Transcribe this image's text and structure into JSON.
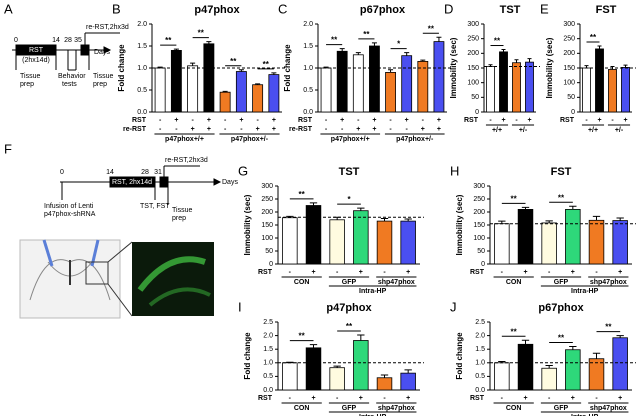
{
  "diagram_a": {
    "panel": "A",
    "ticks": [
      "0",
      "14",
      "28",
      "35"
    ],
    "box_label": "RST",
    "box_sub": "(2hx14d)",
    "axis_label": "Days",
    "re_rst": "re-RST,2hx3d",
    "tissue_prep_1": [
      "Tissue",
      "prep"
    ],
    "behavior": [
      "Behavior",
      "tests"
    ],
    "tissue_prep_2": [
      "Tissue",
      "prep"
    ]
  },
  "diagram_f": {
    "panel": "F",
    "ticks": [
      "0",
      "14",
      "28",
      "31"
    ],
    "box_label": "RST, 2hx14d",
    "axis_label": "Days",
    "re_rst": "re-RST,2hx3d",
    "infusion": [
      "Infusion of Lenti",
      "p47phox-shRNA"
    ],
    "tests": "TST, FST",
    "tissue_prep": [
      "Tissue",
      "prep"
    ]
  },
  "chart_data": [
    {
      "type": "bar",
      "panel": "B",
      "title": "p47phox",
      "y_label": "Fold change",
      "ylim": [
        0,
        2
      ],
      "yticks": [
        {
          "value": 0,
          "label": "0.0"
        },
        {
          "value": 0.5,
          "label": "0.5"
        },
        {
          "value": 1,
          "label": "1.0"
        },
        {
          "value": 1.5,
          "label": "1.5"
        },
        {
          "value": 2,
          "label": "2.0"
        }
      ],
      "values": [
        1.0,
        1.4,
        1.05,
        1.55,
        0.45,
        0.92,
        0.62,
        0.85
      ],
      "errors": [
        0.02,
        0.03,
        0.06,
        0.05,
        0.02,
        0.04,
        0.02,
        0.04
      ],
      "colors": [
        "#ffffff",
        "#000000",
        "#ffffff",
        "#000000",
        "#f07a22",
        "#4a4ff0",
        "#f07a22",
        "#4a4ff0"
      ],
      "reference_line": 1,
      "rows": [
        {
          "label": "RST",
          "values": [
            "-",
            "+",
            "-",
            "+",
            "-",
            "+",
            "-",
            "+"
          ]
        },
        {
          "label": "re-RST",
          "values": [
            "-",
            "-",
            "+",
            "+",
            "-",
            "-",
            "+",
            "+"
          ]
        }
      ],
      "groups": [
        {
          "label": "p47phox+/+",
          "bars": [
            0,
            3
          ]
        },
        {
          "label": "p47phox+/-",
          "bars": [
            4,
            7
          ]
        }
      ],
      "significance": [
        {
          "label": "**",
          "bars": [
            0,
            1
          ]
        },
        {
          "label": "**",
          "bars": [
            2,
            3
          ]
        },
        {
          "label": "**",
          "bars": [
            4,
            5
          ]
        },
        {
          "label": "**",
          "bars": [
            6,
            7
          ]
        }
      ]
    },
    {
      "type": "bar",
      "panel": "C",
      "title": "p67phox",
      "y_label": "Fold change",
      "ylim": [
        0,
        2
      ],
      "yticks": [
        {
          "value": 0,
          "label": "0.0"
        },
        {
          "value": 0.5,
          "label": "0.5"
        },
        {
          "value": 1,
          "label": "1.0"
        },
        {
          "value": 1.5,
          "label": "1.5"
        },
        {
          "value": 2,
          "label": "2.0"
        }
      ],
      "values": [
        1.0,
        1.38,
        1.3,
        1.5,
        0.9,
        1.28,
        1.15,
        1.6
      ],
      "errors": [
        0.02,
        0.06,
        0.05,
        0.07,
        0.06,
        0.07,
        0.03,
        0.1
      ],
      "colors": [
        "#ffffff",
        "#000000",
        "#ffffff",
        "#000000",
        "#f07a22",
        "#4a4ff0",
        "#f07a22",
        "#4a4ff0"
      ],
      "reference_line": 1,
      "rows": [
        {
          "label": "RST",
          "values": [
            "-",
            "+",
            "-",
            "+",
            "-",
            "+",
            "-",
            "+"
          ]
        },
        {
          "label": "re-RST",
          "values": [
            "-",
            "-",
            "+",
            "+",
            "-",
            "-",
            "+",
            "+"
          ]
        }
      ],
      "groups": [
        {
          "label": "p47phox+/+",
          "bars": [
            0,
            3
          ]
        },
        {
          "label": "p47phox+/-",
          "bars": [
            4,
            7
          ]
        }
      ],
      "significance": [
        {
          "label": "**",
          "bars": [
            0,
            1
          ]
        },
        {
          "label": "**",
          "bars": [
            2,
            3
          ]
        },
        {
          "label": "*",
          "bars": [
            4,
            5
          ]
        },
        {
          "label": "**",
          "bars": [
            6,
            7
          ]
        }
      ]
    },
    {
      "type": "bar",
      "panel": "D",
      "title": "TST",
      "y_label": "Immobility (sec)",
      "ylim": [
        0,
        300
      ],
      "yticks": [
        0,
        50,
        100,
        150,
        200,
        250,
        300
      ],
      "values": [
        155,
        205,
        168,
        170
      ],
      "errors": [
        6,
        8,
        10,
        12
      ],
      "colors": [
        "#ffffff",
        "#000000",
        "#f07a22",
        "#4a4ff0"
      ],
      "reference_line": 155,
      "rows": [
        {
          "label": "RST",
          "values": [
            "-",
            "+",
            "-",
            "+"
          ]
        }
      ],
      "groups": [
        {
          "label": "+/+",
          "bars": [
            0,
            1
          ]
        },
        {
          "label": "+/-",
          "bars": [
            2,
            3
          ]
        }
      ],
      "significance": [
        {
          "label": "**",
          "bars": [
            0,
            1
          ]
        }
      ]
    },
    {
      "type": "bar",
      "panel": "E",
      "title": "FST",
      "y_label": "Immobility (sec)",
      "ylim": [
        0,
        300
      ],
      "yticks": [
        0,
        50,
        100,
        150,
        200,
        250,
        300
      ],
      "values": [
        150,
        215,
        145,
        152
      ],
      "errors": [
        8,
        10,
        10,
        8
      ],
      "colors": [
        "#ffffff",
        "#000000",
        "#f07a22",
        "#4a4ff0"
      ],
      "reference_line": 150,
      "rows": [
        {
          "label": "RST",
          "values": [
            "-",
            "+",
            "-",
            "+"
          ]
        }
      ],
      "groups": [
        {
          "label": "+/+",
          "bars": [
            0,
            1
          ]
        },
        {
          "label": "+/-",
          "bars": [
            2,
            3
          ]
        }
      ],
      "significance": [
        {
          "label": "**",
          "bars": [
            0,
            1
          ]
        }
      ]
    },
    {
      "type": "bar",
      "panel": "G",
      "title": "TST",
      "y_label": "Immobility (sec)",
      "ylim": [
        0,
        300
      ],
      "yticks": [
        0,
        50,
        100,
        150,
        200,
        250,
        300
      ],
      "values": [
        178,
        225,
        170,
        205,
        165,
        165
      ],
      "errors": [
        5,
        10,
        10,
        10,
        10,
        8
      ],
      "colors": [
        "#ffffff",
        "#000000",
        "#fffbe0",
        "#2ed87a",
        "#f07a22",
        "#4a4ff0"
      ],
      "reference_line": 180,
      "rows": [
        {
          "label": "RST",
          "values": [
            "-",
            "+",
            "-",
            "+",
            "-",
            "+"
          ]
        }
      ],
      "groups": [
        {
          "label": "CON",
          "bars": [
            0,
            1
          ]
        },
        {
          "label": "GFP",
          "bars": [
            2,
            3
          ]
        },
        {
          "label": "shp47phox",
          "bars": [
            4,
            5
          ]
        }
      ],
      "super_groups": [
        {
          "label": "Intra-HP",
          "bars": [
            2,
            5
          ]
        }
      ],
      "significance": [
        {
          "label": "**",
          "bars": [
            0,
            1
          ]
        },
        {
          "label": "*",
          "bars": [
            2,
            3
          ]
        }
      ]
    },
    {
      "type": "bar",
      "panel": "H",
      "title": "FST",
      "y_label": "Immobility (sec)",
      "ylim": [
        0,
        300
      ],
      "yticks": [
        0,
        50,
        100,
        150,
        200,
        250,
        300
      ],
      "values": [
        155,
        210,
        158,
        210,
        168,
        167
      ],
      "errors": [
        10,
        8,
        8,
        12,
        15,
        10
      ],
      "colors": [
        "#ffffff",
        "#000000",
        "#fffbe0",
        "#2ed87a",
        "#f07a22",
        "#4a4ff0"
      ],
      "reference_line": 155,
      "rows": [
        {
          "label": "RST",
          "values": [
            "-",
            "+",
            "-",
            "+",
            "-",
            "+"
          ]
        }
      ],
      "groups": [
        {
          "label": "CON",
          "bars": [
            0,
            1
          ]
        },
        {
          "label": "GFP",
          "bars": [
            2,
            3
          ]
        },
        {
          "label": "shp47phox",
          "bars": [
            4,
            5
          ]
        }
      ],
      "super_groups": [
        {
          "label": "Intra-HP",
          "bars": [
            2,
            5
          ]
        }
      ],
      "significance": [
        {
          "label": "**",
          "bars": [
            0,
            1
          ]
        },
        {
          "label": "**",
          "bars": [
            2,
            3
          ]
        }
      ]
    },
    {
      "type": "bar",
      "panel": "I",
      "title": "p47phox",
      "y_label": "Fold change",
      "ylim": [
        0,
        2.5
      ],
      "yticks": [
        {
          "value": 0,
          "label": "0.0"
        },
        {
          "value": 0.5,
          "label": "0.5"
        },
        {
          "value": 1,
          "label": "1.0"
        },
        {
          "value": 1.5,
          "label": "1.5"
        },
        {
          "value": 2,
          "label": "2.0"
        },
        {
          "value": 2.5,
          "label": "2.5"
        }
      ],
      "values": [
        1.0,
        1.55,
        0.82,
        1.82,
        0.45,
        0.62
      ],
      "errors": [
        0.02,
        0.12,
        0.06,
        0.2,
        0.1,
        0.12
      ],
      "colors": [
        "#ffffff",
        "#000000",
        "#fffbe0",
        "#2ed87a",
        "#f07a22",
        "#4a4ff0"
      ],
      "reference_line": 1,
      "rows": [
        {
          "label": "RST",
          "values": [
            "-",
            "+",
            "-",
            "+",
            "-",
            "+"
          ]
        }
      ],
      "groups": [
        {
          "label": "CON",
          "bars": [
            0,
            1
          ]
        },
        {
          "label": "GFP",
          "bars": [
            2,
            3
          ]
        },
        {
          "label": "shp47phox",
          "bars": [
            4,
            5
          ]
        }
      ],
      "super_groups": [
        {
          "label": "Intra-HP",
          "bars": [
            2,
            5
          ]
        }
      ],
      "significance": [
        {
          "label": "**",
          "bars": [
            0,
            1
          ]
        },
        {
          "label": "**",
          "bars": [
            2,
            3
          ]
        }
      ]
    },
    {
      "type": "bar",
      "panel": "J",
      "title": "p67phox",
      "y_label": "Fold change",
      "ylim": [
        0,
        2.5
      ],
      "yticks": [
        {
          "value": 0,
          "label": "0.0"
        },
        {
          "value": 0.5,
          "label": "0.5"
        },
        {
          "value": 1,
          "label": "1.0"
        },
        {
          "value": 1.5,
          "label": "1.5"
        },
        {
          "value": 2,
          "label": "2.0"
        },
        {
          "value": 2.5,
          "label": "2.5"
        }
      ],
      "values": [
        1.0,
        1.68,
        0.8,
        1.48,
        1.15,
        1.92
      ],
      "errors": [
        0.05,
        0.15,
        0.1,
        0.12,
        0.2,
        0.08
      ],
      "colors": [
        "#ffffff",
        "#000000",
        "#fffbe0",
        "#2ed87a",
        "#f07a22",
        "#4a4ff0"
      ],
      "reference_line": 1,
      "rows": [
        {
          "label": "RST",
          "values": [
            "-",
            "+",
            "-",
            "+",
            "-",
            "+"
          ]
        }
      ],
      "groups": [
        {
          "label": "CON",
          "bars": [
            0,
            1
          ]
        },
        {
          "label": "GFP",
          "bars": [
            2,
            3
          ]
        },
        {
          "label": "shp47phox",
          "bars": [
            4,
            5
          ]
        }
      ],
      "super_groups": [
        {
          "label": "Intra-HP",
          "bars": [
            2,
            5
          ]
        }
      ],
      "significance": [
        {
          "label": "**",
          "bars": [
            0,
            1
          ]
        },
        {
          "label": "**",
          "bars": [
            2,
            3
          ]
        },
        {
          "label": "**",
          "bars": [
            4,
            5
          ]
        }
      ]
    }
  ]
}
